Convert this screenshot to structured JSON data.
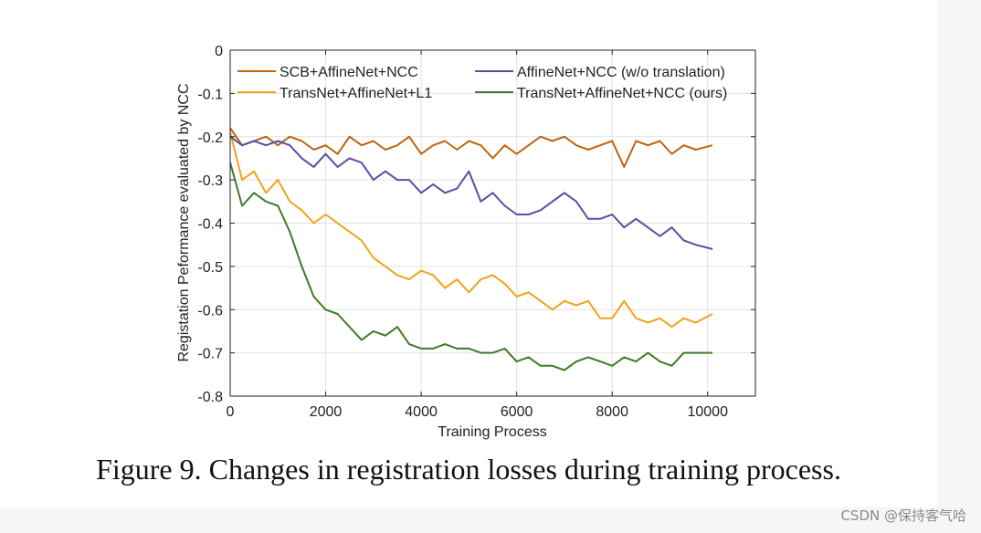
{
  "chart_data": {
    "type": "line",
    "xlabel": "Training Process",
    "ylabel": "Registation Peformance evaluated by NCC",
    "xlim": [
      0,
      11000
    ],
    "ylim": [
      -0.8,
      0
    ],
    "xticks": [
      0,
      2000,
      4000,
      6000,
      8000,
      10000
    ],
    "xtick_labels": [
      "0",
      "2000",
      "4000",
      "6000",
      "8000",
      "10000"
    ],
    "yticks": [
      0,
      -0.1,
      -0.2,
      -0.3,
      -0.4,
      -0.5,
      -0.6,
      -0.7,
      -0.8
    ],
    "ytick_labels": [
      "0",
      "-0.1",
      "-0.2",
      "-0.3",
      "-0.4",
      "-0.5",
      "-0.6",
      "-0.7",
      "-0.8"
    ],
    "grid": true,
    "legend_placement": "top",
    "x": [
      0,
      250,
      500,
      750,
      1000,
      1250,
      1500,
      1750,
      2000,
      2250,
      2500,
      2750,
      3000,
      3250,
      3500,
      3750,
      4000,
      4250,
      4500,
      4750,
      5000,
      5250,
      5500,
      5750,
      6000,
      6250,
      6500,
      6750,
      7000,
      7250,
      7500,
      7750,
      8000,
      8250,
      8500,
      8750,
      9000,
      9250,
      9500,
      9750,
      10100
    ],
    "series": [
      {
        "name": "SCB+AffineNet+NCC",
        "color": "#c0640f",
        "values": [
          -0.18,
          -0.22,
          -0.21,
          -0.2,
          -0.22,
          -0.2,
          -0.21,
          -0.23,
          -0.22,
          -0.24,
          -0.2,
          -0.22,
          -0.21,
          -0.23,
          -0.22,
          -0.2,
          -0.24,
          -0.22,
          -0.21,
          -0.23,
          -0.21,
          -0.22,
          -0.25,
          -0.22,
          -0.24,
          -0.22,
          -0.2,
          -0.21,
          -0.2,
          -0.22,
          -0.23,
          -0.22,
          -0.21,
          -0.27,
          -0.21,
          -0.22,
          -0.21,
          -0.24,
          -0.22,
          -0.23,
          -0.22
        ]
      },
      {
        "name": "TransNet+AffineNet+L1",
        "color": "#f0a31a",
        "values": [
          -0.19,
          -0.3,
          -0.28,
          -0.33,
          -0.3,
          -0.35,
          -0.37,
          -0.4,
          -0.38,
          -0.4,
          -0.42,
          -0.44,
          -0.48,
          -0.5,
          -0.52,
          -0.53,
          -0.51,
          -0.52,
          -0.55,
          -0.53,
          -0.56,
          -0.53,
          -0.52,
          -0.54,
          -0.57,
          -0.56,
          -0.58,
          -0.6,
          -0.58,
          -0.59,
          -0.58,
          -0.62,
          -0.62,
          -0.58,
          -0.62,
          -0.63,
          -0.62,
          -0.64,
          -0.62,
          -0.63,
          -0.61
        ]
      },
      {
        "name": "AffineNet+NCC (w/o translation)",
        "color": "#5a4ea0",
        "values": [
          -0.2,
          -0.22,
          -0.21,
          -0.22,
          -0.21,
          -0.22,
          -0.25,
          -0.27,
          -0.24,
          -0.27,
          -0.25,
          -0.26,
          -0.3,
          -0.28,
          -0.3,
          -0.3,
          -0.33,
          -0.31,
          -0.33,
          -0.32,
          -0.28,
          -0.35,
          -0.33,
          -0.36,
          -0.38,
          -0.38,
          -0.37,
          -0.35,
          -0.33,
          -0.35,
          -0.39,
          -0.39,
          -0.38,
          -0.41,
          -0.39,
          -0.41,
          -0.43,
          -0.41,
          -0.44,
          -0.45,
          -0.46
        ]
      },
      {
        "name": "TransNet+AffineNet+NCC (ours)",
        "color": "#3e7b27",
        "values": [
          -0.26,
          -0.36,
          -0.33,
          -0.35,
          -0.36,
          -0.42,
          -0.5,
          -0.57,
          -0.6,
          -0.61,
          -0.64,
          -0.67,
          -0.65,
          -0.66,
          -0.64,
          -0.68,
          -0.69,
          -0.69,
          -0.68,
          -0.69,
          -0.69,
          -0.7,
          -0.7,
          -0.69,
          -0.72,
          -0.71,
          -0.73,
          -0.73,
          -0.74,
          -0.72,
          -0.71,
          -0.72,
          -0.73,
          -0.71,
          -0.72,
          -0.7,
          -0.72,
          -0.73,
          -0.7,
          -0.7,
          -0.7
        ]
      }
    ]
  },
  "caption": "Figure 9. Changes in registration losses during training process.",
  "watermark": "CSDN @保持客气哈"
}
